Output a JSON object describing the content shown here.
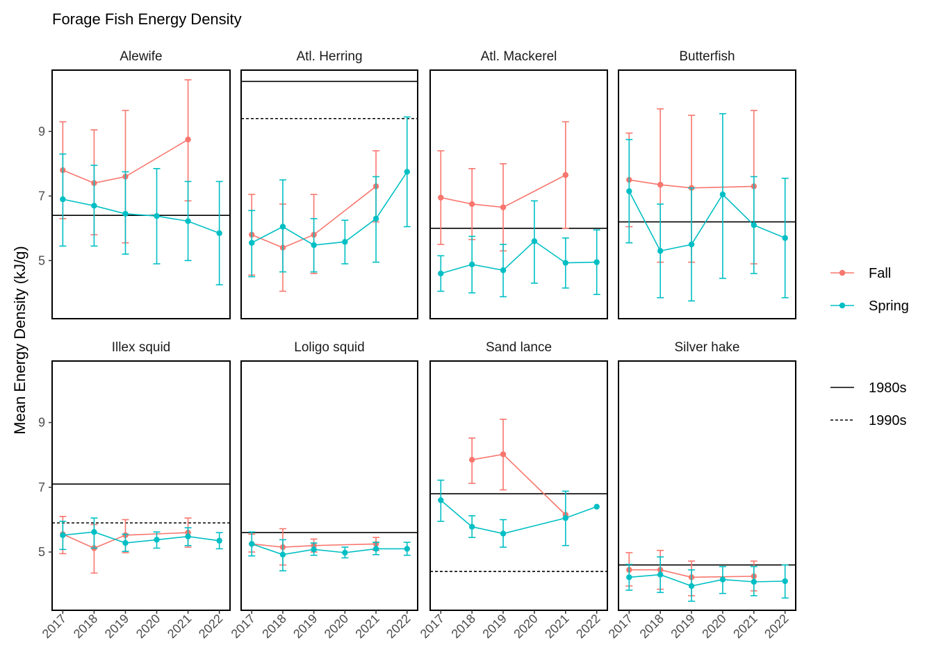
{
  "chart_data": {
    "type": "line",
    "title": "Forage Fish Energy Density",
    "ylabel": "Mean Energy Density (kJ/g)",
    "xlabel": "",
    "x": [
      "2017",
      "2018",
      "2019",
      "2020",
      "2021",
      "2022"
    ],
    "ylim": [
      3.2,
      10.9
    ],
    "yticks": [
      5,
      7,
      9
    ],
    "grid": false,
    "error_bars": true,
    "colors": {
      "Fall": "#F8766D",
      "Spring": "#00BFC4",
      "reference": "#000000"
    },
    "legend": {
      "placement": "right",
      "series": [
        {
          "name": "Fall"
        },
        {
          "name": "Spring"
        }
      ],
      "reference": [
        {
          "name": "1980s",
          "style": "solid"
        },
        {
          "name": "1990s",
          "style": "dashed"
        }
      ]
    },
    "panels": [
      {
        "name": "Alewife",
        "ref_1980s": 6.4,
        "ref_1990s": null,
        "series": [
          {
            "name": "Fall",
            "values": [
              7.8,
              7.4,
              7.6,
              null,
              8.75,
              null
            ],
            "lower": [
              6.3,
              5.8,
              5.55,
              null,
              6.85,
              null
            ],
            "upper": [
              9.3,
              9.05,
              9.65,
              null,
              10.6,
              null
            ]
          },
          {
            "name": "Spring",
            "values": [
              6.9,
              6.7,
              6.45,
              6.38,
              6.22,
              5.85
            ],
            "lower": [
              5.45,
              5.45,
              5.2,
              4.9,
              5.0,
              4.25
            ],
            "upper": [
              8.3,
              7.95,
              7.75,
              7.85,
              7.45,
              7.45
            ]
          }
        ]
      },
      {
        "name": "Atl. Herring",
        "ref_1980s": 10.55,
        "ref_1990s": 9.4,
        "series": [
          {
            "name": "Fall",
            "values": [
              5.8,
              5.4,
              5.8,
              null,
              7.3,
              null
            ],
            "lower": [
              4.55,
              4.05,
              4.6,
              null,
              6.2,
              null
            ],
            "upper": [
              7.05,
              6.75,
              7.05,
              null,
              8.4,
              null
            ]
          },
          {
            "name": "Spring",
            "values": [
              5.55,
              6.05,
              5.48,
              5.58,
              6.3,
              7.75
            ],
            "lower": [
              4.5,
              4.65,
              4.65,
              4.9,
              4.95,
              6.05
            ],
            "upper": [
              6.55,
              7.5,
              6.3,
              6.25,
              7.6,
              9.45
            ]
          }
        ]
      },
      {
        "name": "Atl. Mackerel",
        "ref_1980s": 6.0,
        "ref_1990s": null,
        "series": [
          {
            "name": "Fall",
            "values": [
              6.95,
              6.75,
              6.65,
              null,
              7.65,
              null
            ],
            "lower": [
              5.5,
              5.65,
              5.3,
              null,
              6.0,
              null
            ],
            "upper": [
              8.4,
              7.85,
              8.0,
              null,
              9.3,
              null
            ]
          },
          {
            "name": "Spring",
            "values": [
              4.6,
              4.88,
              4.7,
              5.6,
              4.93,
              4.95
            ],
            "lower": [
              4.05,
              4.0,
              3.88,
              4.3,
              4.15,
              3.95
            ],
            "upper": [
              5.15,
              5.75,
              5.5,
              6.85,
              5.7,
              5.95
            ]
          }
        ]
      },
      {
        "name": "Butterfish",
        "ref_1980s": 6.2,
        "ref_1990s": null,
        "series": [
          {
            "name": "Fall",
            "values": [
              7.5,
              7.35,
              7.25,
              null,
              7.3,
              null
            ],
            "lower": [
              6.05,
              4.95,
              4.95,
              null,
              4.9,
              null
            ],
            "upper": [
              8.95,
              9.7,
              9.5,
              null,
              9.65,
              null
            ]
          },
          {
            "name": "Spring",
            "values": [
              7.15,
              5.3,
              5.5,
              7.05,
              6.1,
              5.7
            ],
            "lower": [
              5.55,
              3.85,
              3.75,
              4.45,
              4.6,
              3.85
            ],
            "upper": [
              8.75,
              6.75,
              7.25,
              9.55,
              7.6,
              7.55
            ]
          }
        ]
      },
      {
        "name": "Illex squid",
        "ref_1980s": 7.1,
        "ref_1990s": 5.9,
        "series": [
          {
            "name": "Fall",
            "values": [
              5.55,
              5.12,
              5.52,
              null,
              5.6,
              null
            ],
            "lower": [
              4.95,
              4.35,
              4.98,
              null,
              5.15,
              null
            ],
            "upper": [
              6.1,
              5.85,
              6.0,
              null,
              6.05,
              null
            ]
          },
          {
            "name": "Spring",
            "values": [
              5.52,
              5.62,
              5.28,
              5.38,
              5.48,
              5.35
            ],
            "lower": [
              5.08,
              5.12,
              5.02,
              5.12,
              5.2,
              5.1
            ],
            "upper": [
              5.95,
              6.05,
              5.55,
              5.62,
              5.75,
              5.6
            ]
          }
        ]
      },
      {
        "name": "Loligo squid",
        "ref_1980s": 5.6,
        "ref_1990s": null,
        "series": [
          {
            "name": "Fall",
            "values": [
              5.25,
              5.15,
              5.2,
              null,
              5.25,
              null
            ],
            "lower": [
              5.0,
              4.6,
              5.0,
              null,
              5.05,
              null
            ],
            "upper": [
              5.55,
              5.72,
              5.4,
              null,
              5.45,
              null
            ]
          },
          {
            "name": "Spring",
            "values": [
              5.25,
              4.92,
              5.08,
              4.98,
              5.1,
              5.1
            ],
            "lower": [
              4.88,
              4.42,
              4.9,
              4.82,
              4.92,
              4.9
            ],
            "upper": [
              5.62,
              5.38,
              5.28,
              5.15,
              5.3,
              5.3
            ]
          }
        ]
      },
      {
        "name": "Sand lance",
        "ref_1980s": 6.8,
        "ref_1990s": 4.4,
        "series": [
          {
            "name": "Fall",
            "values": [
              null,
              7.85,
              8.02,
              null,
              6.15,
              null
            ],
            "lower": [
              null,
              7.12,
              6.92,
              null,
              6.15,
              null
            ],
            "upper": [
              null,
              8.52,
              9.1,
              null,
              6.15,
              null
            ]
          },
          {
            "name": "Spring",
            "values": [
              6.6,
              5.78,
              5.57,
              null,
              6.05,
              6.4
            ],
            "lower": [
              5.95,
              5.45,
              5.15,
              null,
              5.2,
              6.4
            ],
            "upper": [
              7.22,
              6.12,
              6.0,
              null,
              6.88,
              6.4
            ]
          }
        ]
      },
      {
        "name": "Silver hake",
        "ref_1980s": 4.6,
        "ref_1990s": null,
        "series": [
          {
            "name": "Fall",
            "values": [
              4.45,
              4.45,
              4.22,
              null,
              4.25,
              null
            ],
            "lower": [
              3.95,
              3.85,
              3.65,
              null,
              3.8,
              null
            ],
            "upper": [
              4.98,
              5.05,
              4.72,
              null,
              4.72,
              null
            ]
          },
          {
            "name": "Spring",
            "values": [
              4.22,
              4.3,
              3.95,
              4.15,
              4.08,
              4.1
            ],
            "lower": [
              3.82,
              3.75,
              3.48,
              3.72,
              3.65,
              3.58
            ],
            "upper": [
              4.62,
              4.85,
              4.45,
              4.55,
              4.55,
              4.6
            ]
          }
        ]
      }
    ]
  }
}
